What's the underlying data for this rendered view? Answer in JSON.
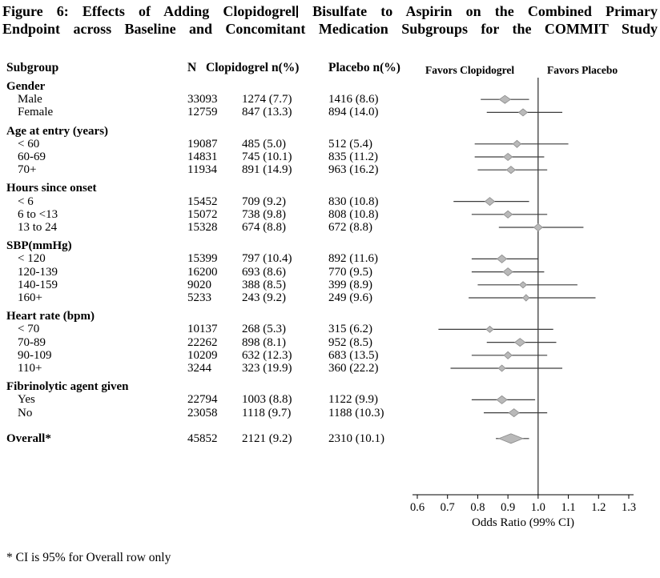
{
  "title": {
    "line1_pre": "Figure 6: Effects of Adding Clopidogrel",
    "line1_post": "Bisulfate to Aspirin on the Combined Primary",
    "line2": "Endpoint across Baseline and Concomitant Medication Subgroups for the COMMIT Study"
  },
  "table": {
    "header_subgroup": "Subgroup",
    "header_n": "N",
    "header_clopidogrel": "Clopidogrel n(%)",
    "header_placebo": "Placebo n(%)"
  },
  "footnote": "* CI is 95% for Overall row only",
  "chart_data": {
    "type": "forest",
    "favors_left": "Favors Clopidogrel",
    "favors_right": "Favors Placebo",
    "xlabel": "Odds Ratio (99% CI)",
    "xlim": [
      0.6,
      1.3
    ],
    "x_tick_labels": [
      "0.6",
      "0.7",
      "0.8",
      "0.9",
      "1.0",
      "1.1",
      "1.2",
      "1.3"
    ],
    "reference_line": 1.0,
    "diamond_fill": "#b9b9b9",
    "diamond_stroke": "#8a8a8a",
    "ci_line_color": "#3d3d3d",
    "rows": [
      {
        "kind": "group",
        "label": "Gender"
      },
      {
        "kind": "data",
        "label": "Male",
        "n": "33093",
        "clopidogrel": "1274 (7.7)",
        "placebo": "1416 (8.6)",
        "or": 0.89,
        "lo": 0.81,
        "hi": 0.97,
        "marker_size": 7
      },
      {
        "kind": "data",
        "label": "Female",
        "n": "12759",
        "clopidogrel": "847 (13.3)",
        "placebo": "894 (14.0)",
        "or": 0.95,
        "lo": 0.83,
        "hi": 1.08,
        "marker_size": 5.5
      },
      {
        "kind": "group",
        "label": "Age at entry (years)"
      },
      {
        "kind": "data",
        "label": "< 60",
        "n": "19087",
        "clopidogrel": "485 (5.0)",
        "placebo": "512 (5.4)",
        "or": 0.93,
        "lo": 0.79,
        "hi": 1.1,
        "marker_size": 5
      },
      {
        "kind": "data",
        "label": "60-69",
        "n": "14831",
        "clopidogrel": "745 (10.1)",
        "placebo": "835 (11.2)",
        "or": 0.9,
        "lo": 0.79,
        "hi": 1.02,
        "marker_size": 5.5
      },
      {
        "kind": "data",
        "label": "70+",
        "n": "11934",
        "clopidogrel": "891 (14.9)",
        "placebo": "963 (16.2)",
        "or": 0.91,
        "lo": 0.8,
        "hi": 1.03,
        "marker_size": 5.5
      },
      {
        "kind": "group",
        "label": "Hours since onset"
      },
      {
        "kind": "data",
        "label": "< 6",
        "n": "15452",
        "clopidogrel": "709 (9.2)",
        "placebo": "830 (10.8)",
        "or": 0.84,
        "lo": 0.72,
        "hi": 0.97,
        "marker_size": 6
      },
      {
        "kind": "data",
        "label": "6 to <13",
        "n": "15072",
        "clopidogrel": "738 (9.8)",
        "placebo": "808 (10.8)",
        "or": 0.9,
        "lo": 0.78,
        "hi": 1.03,
        "marker_size": 5.5
      },
      {
        "kind": "data",
        "label": "13 to 24",
        "n": "15328",
        "clopidogrel": "674 (8.8)",
        "placebo": "672 (8.8)",
        "or": 1.0,
        "lo": 0.87,
        "hi": 1.15,
        "marker_size": 5.5
      },
      {
        "kind": "group",
        "label": "SBP(mmHg)"
      },
      {
        "kind": "data",
        "label": "< 120",
        "n": "15399",
        "clopidogrel": "797 (10.4)",
        "placebo": "892 (11.6)",
        "or": 0.88,
        "lo": 0.78,
        "hi": 1.0,
        "marker_size": 6
      },
      {
        "kind": "data",
        "label": "120-139",
        "n": "16200",
        "clopidogrel": "693 (8.6)",
        "placebo": "770 (9.5)",
        "or": 0.9,
        "lo": 0.78,
        "hi": 1.02,
        "marker_size": 6
      },
      {
        "kind": "data",
        "label": "140-159",
        "n": "9020",
        "clopidogrel": "388 (8.5)",
        "placebo": "399 (8.9)",
        "or": 0.95,
        "lo": 0.8,
        "hi": 1.13,
        "marker_size": 4.5
      },
      {
        "kind": "data",
        "label": "160+",
        "n": "5233",
        "clopidogrel": "243 (9.2)",
        "placebo": "249 (9.6)",
        "or": 0.96,
        "lo": 0.77,
        "hi": 1.19,
        "marker_size": 4
      },
      {
        "kind": "group",
        "label": "Heart rate (bpm)"
      },
      {
        "kind": "data",
        "label": "< 70",
        "n": "10137",
        "clopidogrel": "268 (5.3)",
        "placebo": "315 (6.2)",
        "or": 0.84,
        "lo": 0.67,
        "hi": 1.05,
        "marker_size": 4.5
      },
      {
        "kind": "data",
        "label": "70-89",
        "n": "22262",
        "clopidogrel": "898 (8.1)",
        "placebo": "952 (8.5)",
        "or": 0.94,
        "lo": 0.83,
        "hi": 1.06,
        "marker_size": 6.5
      },
      {
        "kind": "data",
        "label": "90-109",
        "n": "10209",
        "clopidogrel": "632 (12.3)",
        "placebo": "683 (13.5)",
        "or": 0.9,
        "lo": 0.78,
        "hi": 1.03,
        "marker_size": 5
      },
      {
        "kind": "data",
        "label": "110+",
        "n": "3244",
        "clopidogrel": "323 (19.9)",
        "placebo": "360 (22.2)",
        "or": 0.88,
        "lo": 0.71,
        "hi": 1.08,
        "marker_size": 4.5
      },
      {
        "kind": "group",
        "label": "Fibrinolytic agent given"
      },
      {
        "kind": "data",
        "label": "Yes",
        "n": "22794",
        "clopidogrel": "1003 (8.8)",
        "placebo": "1122 (9.9)",
        "or": 0.88,
        "lo": 0.78,
        "hi": 0.99,
        "marker_size": 6.5
      },
      {
        "kind": "data",
        "label": "No",
        "n": "23058",
        "clopidogrel": "1118 (9.7)",
        "placebo": "1188 (10.3)",
        "or": 0.92,
        "lo": 0.82,
        "hi": 1.03,
        "marker_size": 6.5
      },
      {
        "kind": "overall",
        "label": "Overall*",
        "n": "45852",
        "clopidogrel": "2121 (9.2)",
        "placebo": "2310 (10.1)",
        "or": 0.91,
        "lo": 0.86,
        "hi": 0.97,
        "marker_size": 15
      }
    ]
  }
}
